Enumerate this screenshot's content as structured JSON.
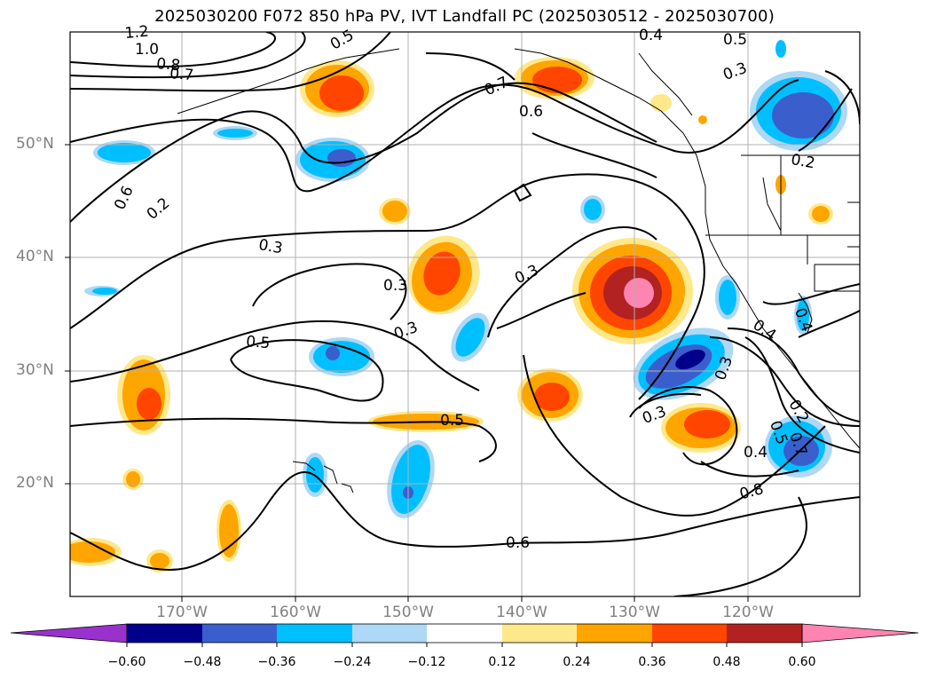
{
  "title": "2025030200 F072 850 hPa PV, IVT Landfall PC (2025030512 - 2025030700)",
  "lat_labels": [
    "50°N",
    "40°N",
    "30°N",
    "20°N"
  ],
  "lon_labels": [
    "170°W",
    "160°W",
    "150°W",
    "140°W",
    "130°W",
    "120°W"
  ],
  "colorbar": {
    "ticks": [
      "−0.60",
      "−0.48",
      "−0.36",
      "−0.24",
      "−0.12",
      "0.12",
      "0.24",
      "0.36",
      "0.48",
      "0.60"
    ],
    "colors": [
      "#9932cc",
      "#00008b",
      "#3a5fcd",
      "#00bfff",
      "#add8f6",
      "#ffffff",
      "#ffe88a",
      "#ffa500",
      "#ff4500",
      "#b22222",
      "#ff85b0"
    ]
  },
  "contour_labels": [
    "1.2",
    "1.0",
    "0.8",
    "0.7",
    "0.5",
    "0.6",
    "0.5",
    "0.4",
    "0.3",
    "0.7",
    "0.6",
    "0.2",
    "0.3",
    "0.5",
    "0.3",
    "0.3",
    "0.4",
    "0.5",
    "0.3",
    "0.3",
    "0.4",
    "0.8",
    "0.4",
    "0.2",
    "0.5",
    "0.7",
    "0.6",
    "0.2",
    "0.3"
  ]
}
